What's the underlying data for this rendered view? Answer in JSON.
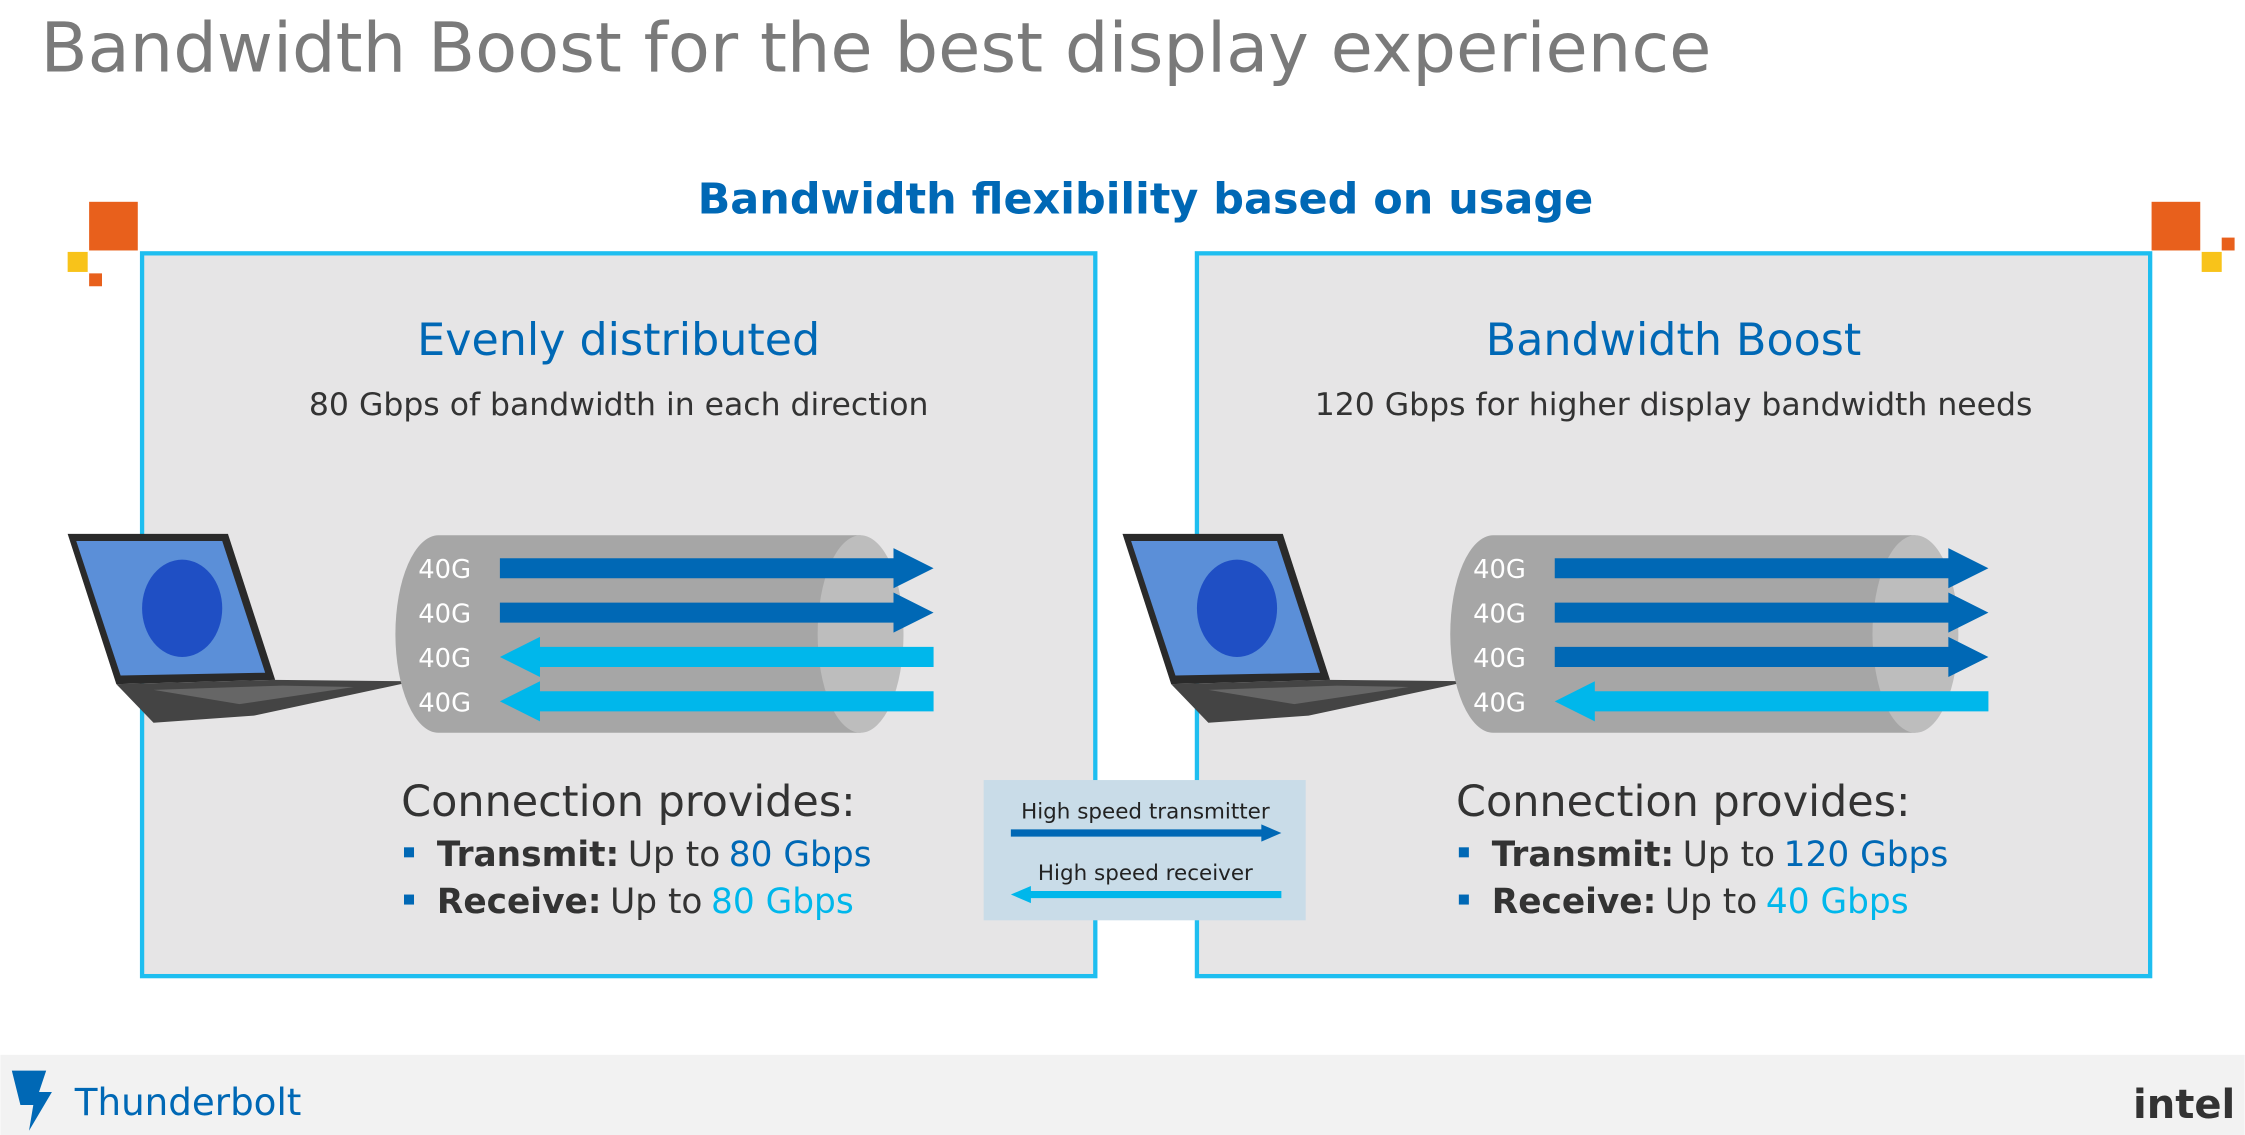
{
  "title": "Bandwidth Boost for the best display experience",
  "subtitle": "Bandwidth flexibility based on usage",
  "panels": [
    {
      "heading": "Evenly distributed",
      "description": "80 Gbps of bandwidth in each direction",
      "lanes": [
        {
          "label": "40G",
          "direction": "transmit"
        },
        {
          "label": "40G",
          "direction": "transmit"
        },
        {
          "label": "40G",
          "direction": "receive"
        },
        {
          "label": "40G",
          "direction": "receive"
        }
      ],
      "provides_heading": "Connection provides:",
      "items": [
        {
          "label": "Transmit:",
          "prefix": "Up to",
          "value": "80 Gbps",
          "direction": "transmit"
        },
        {
          "label": "Receive:",
          "prefix": "Up to",
          "value": "80 Gbps",
          "direction": "receive"
        }
      ]
    },
    {
      "heading": "Bandwidth Boost",
      "description": "120 Gbps for higher display bandwidth needs",
      "lanes": [
        {
          "label": "40G",
          "direction": "transmit"
        },
        {
          "label": "40G",
          "direction": "transmit"
        },
        {
          "label": "40G",
          "direction": "transmit"
        },
        {
          "label": "40G",
          "direction": "receive"
        }
      ],
      "provides_heading": "Connection provides:",
      "items": [
        {
          "label": "Transmit:",
          "prefix": "Up to",
          "value": "120 Gbps",
          "direction": "transmit"
        },
        {
          "label": "Receive:",
          "prefix": "Up to",
          "value": "40 Gbps",
          "direction": "receive"
        }
      ]
    }
  ],
  "legend": [
    {
      "label": "High speed transmitter",
      "direction": "transmit"
    },
    {
      "label": "High speed receiver",
      "direction": "receive"
    }
  ],
  "footer": {
    "brand": "Thunderbolt",
    "company": "intel"
  }
}
